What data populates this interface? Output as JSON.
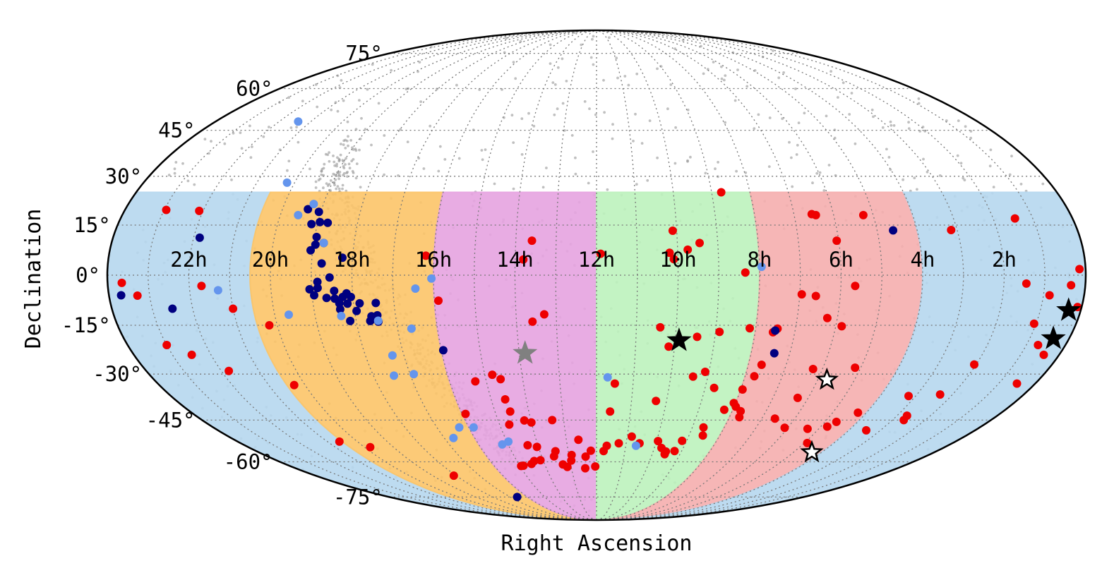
{
  "chart_data": {
    "type": "scatter",
    "projection": "mollweide",
    "title": "",
    "xlabel": "Right Ascension",
    "ylabel": "Declination",
    "grid": true,
    "legend": "none",
    "ra_ticks": [
      "22h",
      "20h",
      "18h",
      "16h",
      "14h",
      "12h",
      "10h",
      "8h",
      "6h",
      "4h",
      "2h"
    ],
    "ra_tick_values_h": [
      22,
      20,
      18,
      16,
      14,
      12,
      10,
      8,
      6,
      4,
      2
    ],
    "dec_ticks": [
      "75°",
      "60°",
      "45°",
      "30°",
      "15°",
      "0°",
      "-15°",
      "-30°",
      "-45°",
      "-60°",
      "-75°"
    ],
    "dec_tick_values": [
      75,
      60,
      45,
      30,
      15,
      0,
      -15,
      -30,
      -45,
      -60,
      -75
    ],
    "dec_limits": [
      -90,
      25
    ],
    "colors": {
      "red_points": "#ee0000",
      "navy_points": "#000080",
      "light_blue_points": "#6495ed",
      "background_points": "#8c8c8c",
      "region_blue": "#b6d7ee",
      "region_orange": "#fcc468",
      "region_magenta": "#e5a3e0",
      "region_green": "#bdf2bd",
      "region_salmon": "#f5aeae"
    },
    "regions": [
      {
        "color_key": "region_blue",
        "ra_range_h": [
          20.5,
          24
        ],
        "dec_range": [
          -90,
          25
        ]
      },
      {
        "color_key": "region_orange",
        "ra_range_h": [
          16.0,
          20.5
        ],
        "dec_range": [
          -90,
          25
        ]
      },
      {
        "color_key": "region_magenta",
        "ra_range_h": [
          12.0,
          16.0
        ],
        "dec_range": [
          -90,
          25
        ]
      },
      {
        "color_key": "region_green",
        "ra_range_h": [
          8.0,
          12.0
        ],
        "dec_range": [
          -90,
          25
        ]
      },
      {
        "color_key": "region_salmon",
        "ra_range_h": [
          4.0,
          8.0
        ],
        "dec_range": [
          -90,
          25
        ]
      },
      {
        "color_key": "region_blue",
        "ra_range_h": [
          0.0,
          4.0
        ],
        "dec_range": [
          -90,
          25
        ]
      }
    ],
    "series": [
      {
        "color_key": "red_points",
        "marker": "circle",
        "points": [
          [
            22.95,
            19.6
          ],
          [
            22.1,
            19.3
          ],
          [
            23.65,
            -2.3
          ],
          [
            23.3,
            -6.1
          ],
          [
            21.7,
            -3.2
          ],
          [
            21.0,
            -10.0
          ],
          [
            20.2,
            -15.0
          ],
          [
            23.0,
            -21.0
          ],
          [
            22.5,
            -24.0
          ],
          [
            21.8,
            -29.0
          ],
          [
            20.3,
            -33.5
          ],
          [
            16.2,
            5.8
          ],
          [
            15.9,
            -7.6
          ],
          [
            13.6,
            10.3
          ],
          [
            13.8,
            4.7
          ],
          [
            13.3,
            -11.7
          ],
          [
            13.6,
            -13.9
          ],
          [
            11.9,
            6.4
          ],
          [
            10.2,
            6.7
          ],
          [
            10.1,
            4.8
          ],
          [
            9.75,
            7.6
          ],
          [
            9.45,
            9.6
          ],
          [
            8.35,
            0.8
          ],
          [
            8.75,
            25.0
          ],
          [
            10.1,
            13.3
          ],
          [
            11.6,
            -42.1
          ],
          [
            10.4,
            -15.6
          ],
          [
            10.15,
            -21.5
          ],
          [
            9.45,
            -18.5
          ],
          [
            8.9,
            -17.0
          ],
          [
            8.15,
            -15.9
          ],
          [
            7.55,
            -17.1
          ],
          [
            7.45,
            -16.0
          ],
          [
            9.1,
            -29.3
          ],
          [
            8.75,
            -34.4
          ],
          [
            7.95,
            -34.9
          ],
          [
            7.65,
            -27.1
          ],
          [
            7.75,
            -30.7
          ],
          [
            6.25,
            -28.4
          ],
          [
            7.7,
            -44.0
          ],
          [
            8.25,
            -41.5
          ],
          [
            8.05,
            -39.3
          ],
          [
            7.95,
            -40.5
          ],
          [
            7.75,
            -42.0
          ],
          [
            8.65,
            -47.5
          ],
          [
            8.55,
            -50.3
          ],
          [
            9.15,
            -52.2
          ],
          [
            9.25,
            -55.9
          ],
          [
            9.55,
            -56.1
          ],
          [
            9.75,
            -54.8
          ],
          [
            9.55,
            -57.1
          ],
          [
            9.95,
            -52.3
          ],
          [
            10.85,
            -50.7
          ],
          [
            10.55,
            -53.1
          ],
          [
            11.25,
            -53.1
          ],
          [
            11.65,
            -54.0
          ],
          [
            11.75,
            -55.9
          ],
          [
            12.2,
            -55.8
          ],
          [
            12.6,
            -51.8
          ],
          [
            12.4,
            -58.0
          ],
          [
            12.9,
            -57.4
          ],
          [
            13.45,
            -56.0
          ],
          [
            13.15,
            -62.0
          ],
          [
            12.45,
            -62.5
          ],
          [
            12.05,
            -61.8
          ],
          [
            12.95,
            -59.5
          ],
          [
            13.3,
            -61.0
          ],
          [
            13.55,
            -57.9
          ],
          [
            14.1,
            -59.4
          ],
          [
            14.35,
            -59.7
          ],
          [
            14.5,
            -60.8
          ],
          [
            14.85,
            -61.5
          ],
          [
            14.95,
            -61.6
          ],
          [
            14.05,
            -54.4
          ],
          [
            14.35,
            -53.8
          ],
          [
            14.0,
            -45.8
          ],
          [
            13.35,
            -45.0
          ],
          [
            14.2,
            -45.1
          ],
          [
            14.7,
            -46.5
          ],
          [
            14.55,
            -42.1
          ],
          [
            14.6,
            -38.1
          ],
          [
            14.6,
            -31.6
          ],
          [
            14.8,
            -30.2
          ],
          [
            15.3,
            -32.3
          ],
          [
            15.9,
            -42.9
          ],
          [
            11.5,
            -33.0
          ],
          [
            10.3,
            -38.6
          ],
          [
            9.4,
            -30.8
          ],
          [
            6.55,
            18.3
          ],
          [
            6.45,
            18.0
          ],
          [
            5.25,
            18.0
          ],
          [
            6.05,
            10.3
          ],
          [
            6.6,
            -6.2
          ],
          [
            6.95,
            -5.7
          ],
          [
            5.65,
            -3.2
          ],
          [
            5.85,
            -15.3
          ],
          [
            6.25,
            -12.8
          ],
          [
            6.3,
            -37.6
          ],
          [
            6.6,
            -44.5
          ],
          [
            6.1,
            -47.6
          ],
          [
            5.35,
            -48.0
          ],
          [
            4.8,
            -47.2
          ],
          [
            4.65,
            -45.6
          ],
          [
            4.25,
            -42.5
          ],
          [
            5.15,
            -28.0
          ],
          [
            3.45,
            -48.5
          ],
          [
            4.9,
            -53.0
          ],
          [
            2.65,
            -45.0
          ],
          [
            2.35,
            -36.5
          ],
          [
            1.05,
            -14.5
          ],
          [
            1.45,
            -2.5
          ],
          [
            2.05,
            -27.0
          ],
          [
            3.15,
            13.5
          ],
          [
            1.45,
            17.0
          ],
          [
            0.35,
            -3.0
          ],
          [
            0.15,
            1.8
          ],
          [
            0.85,
            -6.0
          ],
          [
            0.4,
            -24.0
          ],
          [
            0.1,
            -9.5
          ],
          [
            0.7,
            -21.0
          ],
          [
            0.5,
            -33.0
          ],
          [
            3.2,
            -37.0
          ],
          [
            2.7,
            -43.5
          ],
          [
            18.1,
            -65.5
          ],
          [
            19.8,
            -54.5
          ],
          [
            20.6,
            -52.5
          ]
        ]
      },
      {
        "color_key": "navy_points",
        "marker": "circle",
        "points": [
          [
            19.35,
            19.8
          ],
          [
            19.05,
            19.0
          ],
          [
            19.15,
            15.3
          ],
          [
            18.95,
            15.9
          ],
          [
            18.75,
            15.7
          ],
          [
            18.95,
            11.4
          ],
          [
            18.75,
            9.6
          ],
          [
            18.95,
            9.1
          ],
          [
            19.05,
            7.4
          ],
          [
            18.25,
            5.2
          ],
          [
            18.75,
            3.5
          ],
          [
            18.55,
            -0.7
          ],
          [
            18.85,
            -2.0
          ],
          [
            18.85,
            -3.8
          ],
          [
            19.05,
            -4.2
          ],
          [
            18.45,
            -4.7
          ],
          [
            18.15,
            -5.4
          ],
          [
            18.65,
            -6.8
          ],
          [
            18.95,
            -6.0
          ],
          [
            18.45,
            -7.0
          ],
          [
            18.25,
            -6.5
          ],
          [
            18.05,
            -6.5
          ],
          [
            18.35,
            -8.4
          ],
          [
            17.85,
            -8.4
          ],
          [
            18.15,
            -8.5
          ],
          [
            17.45,
            -8.3
          ],
          [
            17.95,
            -10.7
          ],
          [
            18.35,
            -10.2
          ],
          [
            17.6,
            -12.3
          ],
          [
            17.45,
            -12.0
          ],
          [
            17.65,
            -13.7
          ],
          [
            18.15,
            -13.7
          ],
          [
            17.45,
            -13.9
          ],
          [
            21.85,
            11.2
          ],
          [
            23.7,
            -6.0
          ],
          [
            22.5,
            -10.0
          ],
          [
            15.95,
            -22.6
          ],
          [
            7.5,
            -16.6
          ],
          [
            7.4,
            -23.5
          ],
          [
            4.6,
            13.4
          ],
          [
            16.6,
            -75.0
          ]
        ]
      },
      {
        "color_key": "light_blue_points",
        "marker": "circle",
        "points": [
          [
            21.4,
            48.0
          ],
          [
            20.2,
            28.0
          ],
          [
            19.25,
            21.4
          ],
          [
            19.55,
            18.0
          ],
          [
            18.75,
            9.6
          ],
          [
            19.65,
            -11.8
          ],
          [
            18.35,
            -12.2
          ],
          [
            17.45,
            -13.6
          ],
          [
            21.3,
            -4.5
          ],
          [
            17.3,
            -24.2
          ],
          [
            17.45,
            -30.5
          ],
          [
            16.9,
            -30.0
          ],
          [
            16.65,
            -16.0
          ],
          [
            16.05,
            -1.0
          ],
          [
            16.45,
            -4.0
          ],
          [
            16.3,
            -47.5
          ],
          [
            15.85,
            -47.5
          ],
          [
            15.2,
            -53.5
          ],
          [
            14.95,
            -52.5
          ],
          [
            16.7,
            -51.2
          ],
          [
            11.7,
            -31.0
          ],
          [
            10.65,
            -54.0
          ],
          [
            7.95,
            2.5
          ]
        ]
      },
      {
        "color_key": "star_filled_black",
        "marker": "star-filled",
        "color": "#000000",
        "points": [
          [
            9.9,
            -19.6
          ],
          [
            0.3,
            -10.5
          ],
          [
            0.4,
            -19.0
          ]
        ]
      },
      {
        "color_key": "star_filled_grey",
        "marker": "star-filled",
        "color": "#808080",
        "points": [
          [
            13.85,
            -23.5
          ]
        ]
      },
      {
        "color_key": "star_open",
        "marker": "star-open",
        "color": "#000000",
        "points": [
          [
            5.75,
            -31.8
          ],
          [
            4.35,
            -56.4
          ]
        ]
      }
    ]
  }
}
